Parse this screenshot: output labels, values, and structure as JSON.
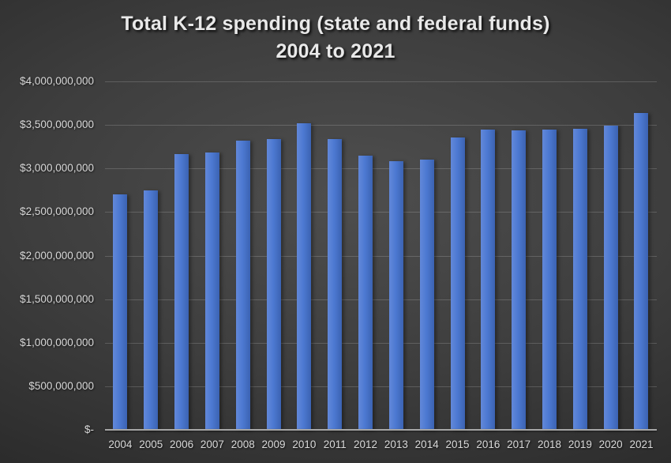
{
  "title": {
    "line1": "Total K-12 spending (state and federal funds)",
    "line2": "2004 to 2021"
  },
  "chart_data": {
    "type": "bar",
    "title": "Total K-12 spending (state and federal funds) 2004 to 2021",
    "xlabel": "",
    "ylabel": "",
    "categories": [
      "2004",
      "2005",
      "2006",
      "2007",
      "2008",
      "2009",
      "2010",
      "2011",
      "2012",
      "2013",
      "2014",
      "2015",
      "2016",
      "2017",
      "2018",
      "2019",
      "2020",
      "2021"
    ],
    "values": [
      2700000000,
      2750000000,
      3170000000,
      3180000000,
      3320000000,
      3340000000,
      3520000000,
      3340000000,
      3150000000,
      3080000000,
      3100000000,
      3360000000,
      3450000000,
      3440000000,
      3450000000,
      3460000000,
      3490000000,
      3640000000
    ],
    "ylim": [
      0,
      4000000000
    ],
    "ytick_step": 500000000,
    "ytick_labels_bottom_to_top": [
      "$-",
      "$500,000,000",
      "$1,000,000,000",
      "$1,500,000,000",
      "$2,000,000,000",
      "$2,500,000,000",
      "$3,000,000,000",
      "$3,500,000,000",
      "$4,000,000,000"
    ],
    "grid": true,
    "legend_position": "none",
    "colors": {
      "bar_fill": "#4d79d2",
      "bar_highlight": "#6288d9",
      "bar_shade": "#3b63b2",
      "axis_line": "#a6a6a6",
      "tick_text": "#d9d9d9",
      "title_text": "#e9e9e9"
    }
  }
}
